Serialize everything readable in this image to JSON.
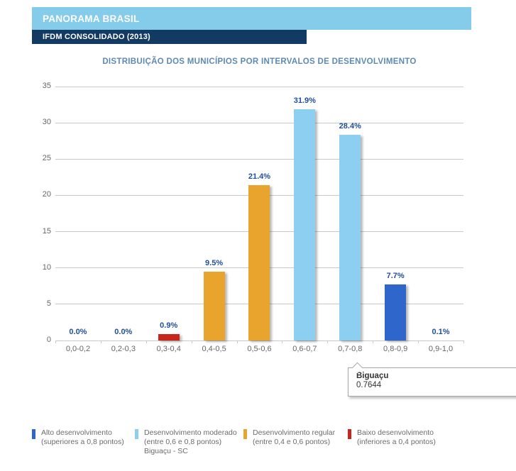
{
  "header": {
    "panorama": "PANORAMA BRASIL",
    "subheader": "IFDM CONSOLIDADO (2013)"
  },
  "chart_data": {
    "type": "bar",
    "title": "DISTRIBUIÇÃO DOS MUNICÍPIOS POR INTERVALOS DE DESENVOLVIMENTO",
    "categories": [
      "0,0-0,2",
      "0,2-0,3",
      "0,3-0,4",
      "0,4-0,5",
      "0,5-0,6",
      "0,6-0,7",
      "0,7-0,8",
      "0,8-0,9",
      "0,9-1,0"
    ],
    "values": [
      0.0,
      0.0,
      0.9,
      9.5,
      21.4,
      31.9,
      28.4,
      7.7,
      0.1
    ],
    "value_labels": [
      "0.0%",
      "0.0%",
      "0.9%",
      "9.5%",
      "21.4%",
      "31.9%",
      "28.4%",
      "7.7%",
      "0.1%"
    ],
    "bar_colors": [
      null,
      null,
      "#C9251D",
      "#E9A42E",
      "#E9A42E",
      "#8DCFF0",
      "#8DCFF0",
      "#2E66CB",
      "#2E66CB"
    ],
    "xlabel": "",
    "ylabel": "",
    "ylim": [
      0,
      35
    ],
    "yticks": [
      0,
      5,
      10,
      15,
      20,
      25,
      30,
      35
    ],
    "grid": true,
    "legend_position": "bottom"
  },
  "tooltip": {
    "title": "Biguaçu",
    "value": "0.7644"
  },
  "legend": [
    {
      "color": "#2E66CB",
      "lines": [
        "Alto desenvolvimento",
        "(superiores a 0,8 pontos)"
      ]
    },
    {
      "color": "#8DCFF0",
      "lines": [
        "Desenvolvimento moderado",
        "(entre 0,6 e 0,8 pontos)",
        "Biguaçu - SC"
      ]
    },
    {
      "color": "#E9A42E",
      "lines": [
        "Desenvolvimento regular",
        "(entre 0,4 e 0,6 pontos)"
      ]
    },
    {
      "color": "#C9251D",
      "lines": [
        "Baixo desenvolvimento",
        "(inferiores a 0,4 pontos)"
      ]
    }
  ],
  "colors": {
    "header_light_blue": "#85CBEA",
    "header_dark_navy": "#123A63",
    "title_blue": "#5E89B4",
    "value_label_navy": "#1F4E9B",
    "axis_text_gray": "#666666",
    "gridline_gray": "#C9C9C9",
    "legend_text_gray": "#6B6B6B"
  }
}
